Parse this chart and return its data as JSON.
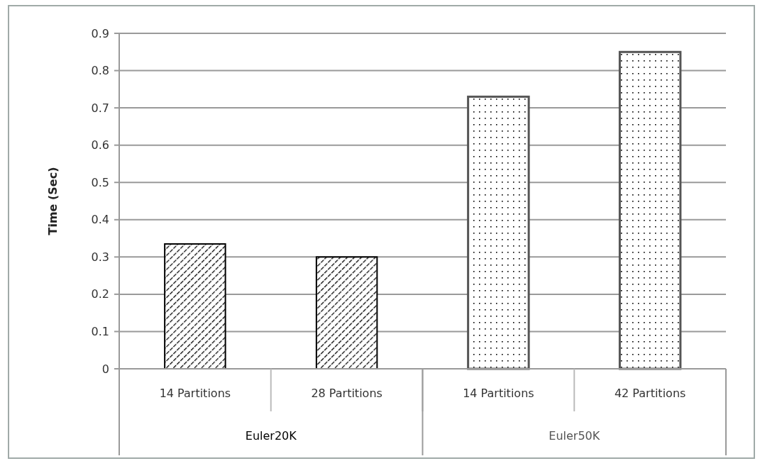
{
  "chart_data": {
    "type": "bar",
    "ylabel": "Time (Sec)",
    "categories": [
      "14 Partitions",
      "28 Partitions",
      "14 Partitions",
      "42 Partitions"
    ],
    "series": [
      {
        "name": "Euler20K",
        "color": "#000000",
        "values": [
          0.335,
          0.3,
          null,
          null
        ]
      },
      {
        "name": "Euler50K",
        "color": "#555555",
        "values": [
          null,
          null,
          0.73,
          0.85
        ]
      }
    ],
    "ylim": [
      0,
      0.9
    ],
    "yticks": [
      0,
      0.1,
      0.2,
      0.3,
      0.4,
      0.5,
      0.6,
      0.7,
      0.8,
      0.9
    ],
    "grid": "y"
  }
}
